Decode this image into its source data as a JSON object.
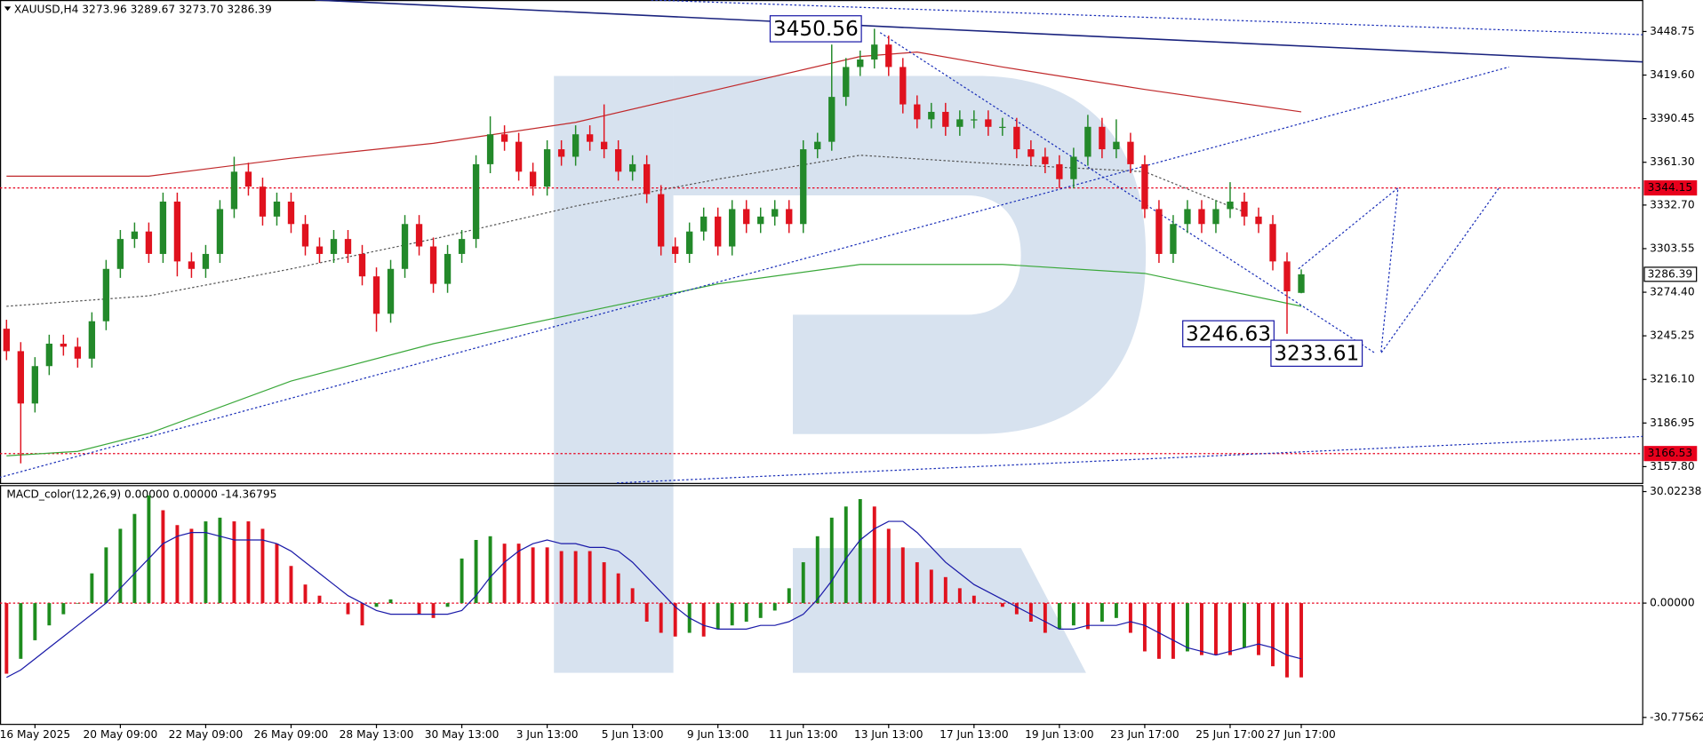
{
  "chart_data": {
    "type": "candlestick",
    "title": "XAUUSD,H4 3273.96 3289.67 3273.70 3286.39",
    "categories": [
      null,
      null,
      "16 May 2025",
      null,
      null,
      null,
      null,
      null,
      "20 May 09:00",
      null,
      null,
      null,
      null,
      null,
      "22 May 09:00",
      null,
      null,
      null,
      null,
      null,
      "26 May 09:00",
      null,
      null,
      null,
      null,
      null,
      "28 May 13:00",
      null,
      null,
      null,
      null,
      null,
      "30 May 13:00",
      null,
      null,
      null,
      null,
      null,
      "3 Jun 13:00",
      null,
      null,
      null,
      null,
      null,
      "5 Jun 13:00",
      null,
      null,
      null,
      null,
      null,
      "9 Jun 13:00",
      null,
      null,
      null,
      null,
      null,
      "11 Jun 13:00",
      null,
      null,
      null,
      null,
      null,
      "13 Jun 13:00",
      null,
      null,
      null,
      null,
      null,
      "17 Jun 13:00",
      null,
      null,
      null,
      null,
      null,
      "19 Jun 13:00",
      null,
      null,
      null,
      null,
      null,
      "23 Jun 17:00",
      null,
      null,
      null,
      null,
      null,
      "25 Jun 17:00",
      null,
      null,
      null,
      null,
      "27 Jun 17:00"
    ],
    "ohlc": [
      [
        3250,
        3256,
        3229,
        3235
      ],
      [
        3235,
        3241,
        3160,
        3200
      ],
      [
        3200,
        3231,
        3194,
        3225
      ],
      [
        3225,
        3246,
        3219,
        3240
      ],
      [
        3240,
        3246,
        3232,
        3238
      ],
      [
        3238,
        3244,
        3224,
        3230
      ],
      [
        3230,
        3261,
        3224,
        3255
      ],
      [
        3255,
        3296,
        3249,
        3290
      ],
      [
        3290,
        3316,
        3284,
        3310
      ],
      [
        3310,
        3321,
        3304,
        3315
      ],
      [
        3315,
        3321,
        3294,
        3300
      ],
      [
        3300,
        3341,
        3294,
        3335
      ],
      [
        3335,
        3341,
        3285,
        3295
      ],
      [
        3295,
        3301,
        3284,
        3290
      ],
      [
        3290,
        3306,
        3284,
        3300
      ],
      [
        3300,
        3336,
        3294,
        3330
      ],
      [
        3330,
        3365,
        3324,
        3355
      ],
      [
        3355,
        3361,
        3339,
        3345
      ],
      [
        3345,
        3351,
        3319,
        3325
      ],
      [
        3325,
        3341,
        3319,
        3335
      ],
      [
        3335,
        3341,
        3314,
        3320
      ],
      [
        3320,
        3326,
        3299,
        3305
      ],
      [
        3305,
        3311,
        3294,
        3300
      ],
      [
        3300,
        3316,
        3294,
        3310
      ],
      [
        3310,
        3316,
        3294,
        3300
      ],
      [
        3300,
        3306,
        3279,
        3285
      ],
      [
        3285,
        3291,
        3248,
        3260
      ],
      [
        3260,
        3296,
        3254,
        3290
      ],
      [
        3290,
        3326,
        3284,
        3320
      ],
      [
        3320,
        3326,
        3299,
        3305
      ],
      [
        3305,
        3311,
        3274,
        3280
      ],
      [
        3280,
        3306,
        3274,
        3300
      ],
      [
        3300,
        3316,
        3294,
        3310
      ],
      [
        3310,
        3366,
        3304,
        3360
      ],
      [
        3360,
        3392,
        3354,
        3380
      ],
      [
        3380,
        3386,
        3369,
        3375
      ],
      [
        3375,
        3381,
        3349,
        3355
      ],
      [
        3355,
        3361,
        3339,
        3345
      ],
      [
        3345,
        3376,
        3339,
        3370
      ],
      [
        3370,
        3376,
        3359,
        3365
      ],
      [
        3365,
        3386,
        3359,
        3380
      ],
      [
        3380,
        3386,
        3369,
        3375
      ],
      [
        3375,
        3400,
        3364,
        3370
      ],
      [
        3370,
        3376,
        3349,
        3355
      ],
      [
        3355,
        3366,
        3349,
        3360
      ],
      [
        3360,
        3366,
        3334,
        3340
      ],
      [
        3340,
        3346,
        3299,
        3305
      ],
      [
        3305,
        3311,
        3294,
        3300
      ],
      [
        3300,
        3321,
        3294,
        3315
      ],
      [
        3315,
        3331,
        3309,
        3325
      ],
      [
        3325,
        3331,
        3299,
        3305
      ],
      [
        3305,
        3336,
        3299,
        3330
      ],
      [
        3330,
        3336,
        3314,
        3320
      ],
      [
        3320,
        3331,
        3314,
        3325
      ],
      [
        3325,
        3336,
        3319,
        3330
      ],
      [
        3330,
        3336,
        3314,
        3320
      ],
      [
        3320,
        3376,
        3314,
        3370
      ],
      [
        3370,
        3381,
        3364,
        3375
      ],
      [
        3375,
        3440,
        3369,
        3405
      ],
      [
        3405,
        3431,
        3399,
        3425
      ],
      [
        3425,
        3436,
        3419,
        3430
      ],
      [
        3430,
        3450.56,
        3424,
        3440
      ],
      [
        3440,
        3446,
        3419,
        3425
      ],
      [
        3425,
        3431,
        3394,
        3400
      ],
      [
        3400,
        3406,
        3384,
        3390
      ],
      [
        3390,
        3401,
        3384,
        3395
      ],
      [
        3395,
        3401,
        3379,
        3385
      ],
      [
        3385,
        3396,
        3379,
        3390
      ],
      [
        3390,
        3396,
        3384,
        3390
      ],
      [
        3390,
        3396,
        3379,
        3385
      ],
      [
        3385,
        3391,
        3379,
        3385
      ],
      [
        3385,
        3391,
        3364,
        3370
      ],
      [
        3370,
        3376,
        3359,
        3365
      ],
      [
        3365,
        3371,
        3354,
        3360
      ],
      [
        3360,
        3366,
        3344,
        3350
      ],
      [
        3350,
        3371,
        3344,
        3365
      ],
      [
        3365,
        3393,
        3359,
        3385
      ],
      [
        3385,
        3391,
        3364,
        3370
      ],
      [
        3370,
        3390,
        3364,
        3375
      ],
      [
        3375,
        3381,
        3354,
        3360
      ],
      [
        3360,
        3366,
        3324,
        3330
      ],
      [
        3330,
        3336,
        3294,
        3300
      ],
      [
        3300,
        3326,
        3294,
        3320
      ],
      [
        3320,
        3336,
        3314,
        3330
      ],
      [
        3330,
        3336,
        3314,
        3320
      ],
      [
        3320,
        3336,
        3314,
        3330
      ],
      [
        3330,
        3348,
        3324,
        3335
      ],
      [
        3335,
        3341,
        3319,
        3325
      ],
      [
        3325,
        3331,
        3314,
        3320
      ],
      [
        3320,
        3326,
        3289,
        3295
      ],
      [
        3295,
        3301,
        3246.63,
        3275
      ],
      [
        3273.96,
        3289.67,
        3273.7,
        3286.39
      ]
    ],
    "up_color": "#23892a",
    "down_color": "#e0121e",
    "ylim": [
      3146.9,
      3469.8
    ],
    "yticks": [
      3448.75,
      {
        "value": 3419.6,
        "label": "3419.60"
      },
      3390.45,
      {
        "value": 3361.3,
        "label": "3361.30"
      },
      {
        "value": 3332.7,
        "label": "3332.70"
      },
      3303.55,
      {
        "value": 3274.4,
        "label": "3274.40"
      },
      3245.25,
      {
        "value": 3216.1,
        "label": "3216.10"
      },
      3186.95,
      {
        "value": 3157.8,
        "label": "3157.80"
      }
    ],
    "moving_averages": [
      {
        "color": "#c0282a",
        "style": "solid",
        "x": [
          0,
          10,
          20,
          30,
          40,
          50,
          60,
          64,
          70,
          80,
          91
        ],
        "values": [
          3352,
          3352,
          3364,
          3374,
          3388,
          3410,
          3432,
          3435,
          3425,
          3410,
          3395
        ]
      },
      {
        "color": "#3aa83a",
        "style": "solid",
        "x": [
          0,
          5,
          10,
          20,
          30,
          40,
          50,
          60,
          70,
          80,
          91
        ],
        "values": [
          3165,
          3168,
          3180,
          3215,
          3240,
          3260,
          3280,
          3293,
          3293,
          3287,
          3265
        ]
      },
      {
        "color": "#555555",
        "style": "dotted",
        "x": [
          0,
          10,
          20,
          30,
          40,
          50,
          60,
          70,
          80,
          87
        ],
        "values": [
          3265,
          3272,
          3290,
          3310,
          3332,
          3350,
          3366,
          3360,
          3355,
          3328
        ]
      }
    ],
    "trendlines": [
      {
        "color": "#1a237e",
        "style": "solid",
        "x": [
          21.7,
          115
        ],
        "values": [
          3469.8,
          3428.4
        ]
      },
      {
        "color": "#1a2fb8",
        "style": "dotted",
        "x": [
          -0.5,
          105.6
        ],
        "values": [
          3150.5,
          3425
        ]
      },
      {
        "color": "#1a2fb8",
        "style": "dotted",
        "x": [
          42.9,
          115
        ],
        "values": [
          3146.9,
          3178
        ]
      },
      {
        "color": "#1a2fb8",
        "style": "dotted",
        "x": [
          45.3,
          115
        ],
        "values": [
          3469.8,
          3446.6
        ]
      },
      {
        "color": "#1a2fb8",
        "style": "dotted",
        "x": [
          61.4,
          96.2
        ],
        "values": [
          3448,
          3233.61
        ]
      },
      {
        "color": "#1a2fb8",
        "style": "dotted",
        "x": [
          90.8,
          97.8,
          96.6,
          104.9
        ],
        "values": [
          3290,
          3344.15,
          3233.61,
          3344.15
        ]
      }
    ],
    "levels": [
      {
        "value": 3344.15,
        "color": "#e8001c",
        "line": true
      },
      {
        "value": 3166.53,
        "color": "#e8001c",
        "line": true
      },
      {
        "value": 3286.39,
        "color": "#ffffff",
        "line": false
      }
    ],
    "annotations": [
      {
        "value": 3450.56,
        "x": 61,
        "color": "#1a1aa8"
      },
      {
        "value": 3246.63,
        "x": 90,
        "color": "#1a1aa8"
      },
      {
        "value": 3233.61,
        "x": 96.2,
        "color": "#1a1aa8"
      }
    ],
    "macd": {
      "type": "histogram",
      "title": "MACD_color(12,26,9) 0.00000 0.00000 -14.36795",
      "values": [
        -19,
        -15,
        -10,
        -6,
        -3,
        0,
        8,
        15,
        20,
        24,
        29,
        25,
        21,
        20,
        22,
        23,
        22,
        22,
        20,
        16,
        10,
        5,
        2,
        0,
        -3,
        -6,
        -1,
        1,
        0,
        -3,
        -4,
        -1,
        12,
        17,
        18,
        16,
        16,
        15,
        15,
        14,
        14,
        14,
        11,
        8,
        4,
        -5,
        -8,
        -9,
        -8,
        -9,
        -7,
        -6,
        -5,
        -4,
        -2,
        4,
        11,
        18,
        23,
        26,
        28,
        26,
        20,
        15,
        11,
        9,
        7,
        4,
        2,
        0,
        -1,
        -3,
        -5,
        -8,
        -7,
        -6,
        -7,
        -5,
        -4,
        -8,
        -13,
        -15,
        -15,
        -13,
        -14,
        -14,
        -14,
        -12,
        -14,
        -17,
        -20,
        -20
      ],
      "up_color": "#1e8c1e",
      "down_color": "#e0121e",
      "signal": {
        "color": "#1a1aa8",
        "values": [
          -20,
          -18,
          -15,
          -12,
          -9,
          -6,
          -3,
          0,
          4,
          8,
          12,
          16,
          18,
          19,
          19,
          18,
          17,
          17,
          17,
          16,
          14,
          11,
          8,
          5,
          2,
          0,
          -2,
          -3,
          -3,
          -3,
          -3,
          -3,
          -2,
          2,
          7,
          11,
          14,
          16,
          17,
          16,
          16,
          15,
          15,
          14,
          11,
          7,
          3,
          -1,
          -4,
          -6,
          -7,
          -7,
          -7,
          -6,
          -6,
          -5,
          -3,
          1,
          6,
          12,
          17,
          20,
          22,
          22,
          19,
          15,
          11,
          8,
          5,
          3,
          1,
          -1,
          -3,
          -5,
          -7,
          -7,
          -6,
          -6,
          -6,
          -5,
          -6,
          -8,
          -10,
          -12,
          -13,
          -14,
          -13,
          -12,
          -11,
          -12,
          -14,
          -15
        ]
      },
      "ylim": [
        -32.5,
        31.77
      ],
      "yticks": [
        30.02238,
        {
          "value": 0,
          "label": "0.00000"
        },
        -30.77562
      ],
      "zero_line": true
    }
  }
}
